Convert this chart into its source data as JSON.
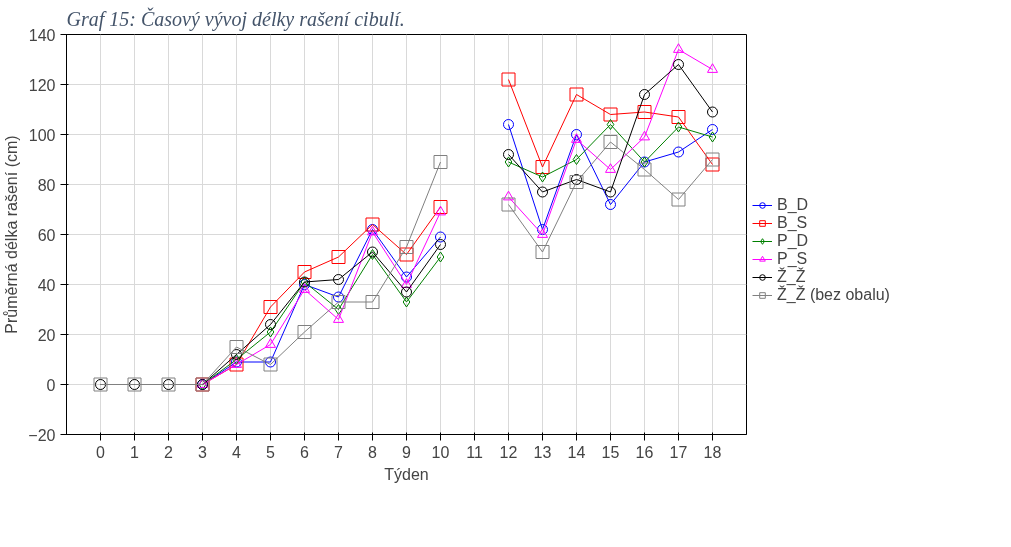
{
  "chart_data": {
    "type": "line",
    "title": "Graf 15: Časový vývoj délky rašení cibulí.",
    "xlabel": "Týden",
    "ylabel": "Průměrná délka rašení (cm)",
    "x": [
      0,
      1,
      2,
      3,
      4,
      5,
      6,
      7,
      8,
      9,
      10,
      11,
      12,
      13,
      14,
      15,
      16,
      17,
      18
    ],
    "xlim": [
      -1,
      19
    ],
    "xticks": [
      0,
      1,
      2,
      3,
      4,
      5,
      6,
      7,
      8,
      9,
      10,
      11,
      12,
      13,
      14,
      15,
      16,
      17,
      18
    ],
    "ylim": [
      -20,
      140
    ],
    "yticks": [
      -20,
      0,
      20,
      40,
      60,
      80,
      100,
      120,
      140
    ],
    "grid": true,
    "legend": "right",
    "line_style": "solid",
    "series": [
      {
        "name": "B_D",
        "color": "#0000ff",
        "marker": "circle",
        "values": [
          null,
          null,
          null,
          0,
          9,
          9,
          40,
          35,
          62,
          43,
          59,
          null,
          104,
          62,
          100,
          72,
          89,
          93,
          102
        ]
      },
      {
        "name": "B_S",
        "color": "#ff0000",
        "marker": "square",
        "values": [
          null,
          null,
          null,
          0,
          8,
          31,
          45,
          51,
          64,
          52,
          71,
          null,
          122,
          87,
          116,
          108,
          109,
          107,
          88
        ]
      },
      {
        "name": "P_D",
        "color": "#008000",
        "marker": "diamond",
        "values": [
          null,
          null,
          null,
          0,
          10,
          21,
          41,
          30,
          52,
          33,
          51,
          null,
          89,
          83,
          90,
          104,
          89,
          103,
          99
        ]
      },
      {
        "name": "P_S",
        "color": "#ff00ff",
        "marker": "triangle",
        "values": [
          null,
          null,
          null,
          0,
          8,
          16,
          38,
          26,
          61,
          40,
          69,
          null,
          75,
          60,
          98,
          86,
          99,
          134,
          126
        ]
      },
      {
        "name": "Ž_Ž",
        "color": "#000000",
        "marker": "circle",
        "values": [
          0,
          0,
          0,
          0,
          12,
          24,
          41,
          42,
          53,
          37,
          56,
          null,
          92,
          77,
          82,
          77,
          116,
          128,
          109
        ]
      },
      {
        "name": "Ž_Ž (bez obalu)",
        "color": "#808080",
        "marker": "square",
        "values": [
          0,
          0,
          0,
          0,
          15,
          8,
          21,
          33,
          33,
          55,
          89,
          null,
          72,
          53,
          81,
          97,
          86,
          74,
          90
        ]
      }
    ]
  }
}
